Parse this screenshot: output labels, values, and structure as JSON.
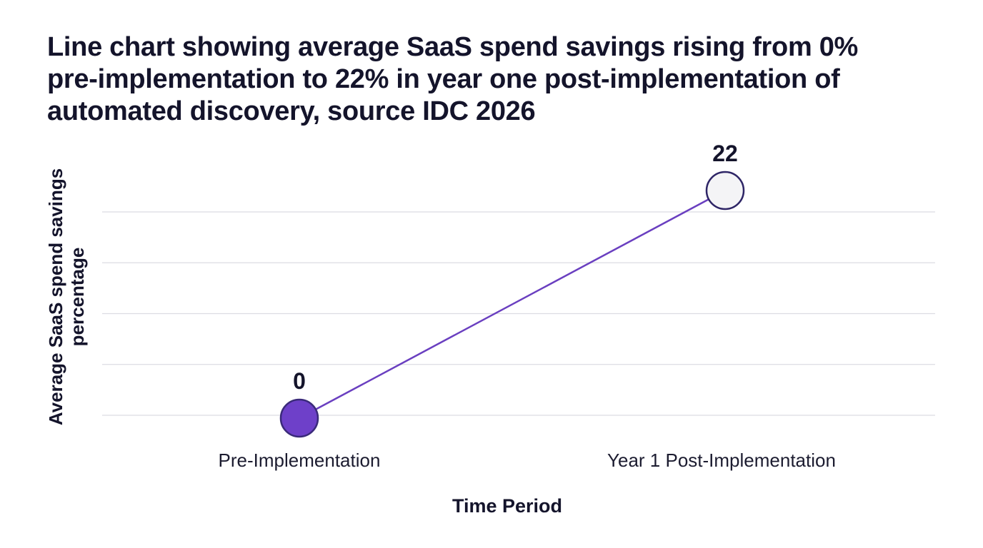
{
  "chart_data": {
    "type": "line",
    "title": "Line chart showing average SaaS spend savings rising from 0% pre-implementation to 22% in year one post-implementation of automated discovery, source IDC 2026",
    "xlabel": "Time Period",
    "ylabel_lines": [
      "Average SaaS spend savings",
      "percentage"
    ],
    "categories": [
      "Pre-Implementation",
      "Year 1 Post-Implementation"
    ],
    "series": [
      {
        "values": [
          0,
          22
        ]
      }
    ],
    "data_labels": [
      "0",
      "22"
    ],
    "ylim": [
      0,
      20.8
    ],
    "grid": true,
    "gridlines_y": [
      0,
      5.2,
      10.4,
      15.6,
      20.8
    ],
    "colors": {
      "line": "#6a3fc0",
      "marker_fill": [
        "#6e40c9",
        "#f4f4f6"
      ],
      "marker_stroke": [
        "#3a2a7a",
        "#2e2566"
      ],
      "grid": "#dcdce2",
      "text": "#14142b"
    }
  }
}
